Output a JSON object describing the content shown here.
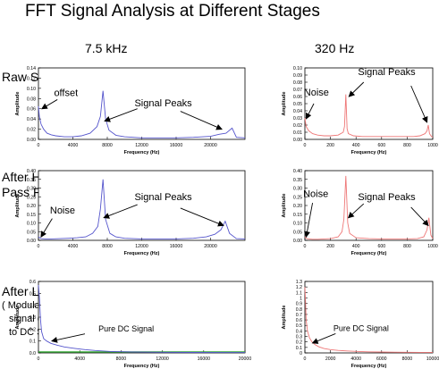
{
  "figure": {
    "title": "FFT Signal Analysis at Different Stages",
    "columns": [
      "7.5 kHz",
      "320 Hz"
    ],
    "rows": [
      [
        "Raw Signal"
      ],
      [
        "After High",
        "Pass Filter"
      ],
      [
        "After Lockin",
        "( Modulated",
        "signal converted",
        "to DC Signal)"
      ]
    ]
  },
  "chart_data": [
    {
      "type": "line",
      "xlabel": "Frequency (Hz)",
      "ylabel": "Amplitude",
      "xlim": [
        0,
        24000
      ],
      "ylim": [
        0,
        0.14
      ],
      "xticks": [
        0,
        4000,
        8000,
        12000,
        16000,
        20000
      ],
      "yticks": [
        0,
        0.02,
        0.04,
        0.06,
        0.08,
        0.1,
        0.12,
        0.14
      ],
      "ytick_labels": [
        "0.00",
        "0.02",
        "0.04",
        "0.06",
        "0.08",
        "0.10",
        "0.12",
        "0.14"
      ],
      "color": "#5555cc",
      "series": [
        {
          "x": [
            0,
            100,
            300,
            600,
            1000,
            1500,
            2000,
            3000,
            4000,
            5000,
            6000,
            6800,
            7200,
            7500,
            7800,
            8200,
            9000,
            10000,
            12000,
            14000,
            16000,
            18000,
            20000,
            21000,
            21800,
            22500,
            23000,
            24000
          ],
          "y": [
            0.065,
            0.045,
            0.03,
            0.02,
            0.012,
            0.009,
            0.007,
            0.005,
            0.005,
            0.007,
            0.012,
            0.025,
            0.045,
            0.095,
            0.04,
            0.018,
            0.008,
            0.005,
            0.003,
            0.003,
            0.003,
            0.004,
            0.006,
            0.01,
            0.012,
            0.022,
            0.004,
            0.003
          ]
        }
      ],
      "annotations": [
        {
          "text": "offset",
          "x": 3200,
          "y": 0.085
        },
        {
          "text": "Signal Peaks",
          "x": 14500,
          "y": 0.065
        }
      ],
      "arrows": [
        {
          "from": [
            2200,
            0.078
          ],
          "to": [
            400,
            0.06
          ]
        },
        {
          "from": [
            11500,
            0.06
          ],
          "to": [
            7700,
            0.036
          ]
        },
        {
          "from": [
            16500,
            0.055
          ],
          "to": [
            21300,
            0.02
          ]
        }
      ]
    },
    {
      "type": "line",
      "xlabel": "Frequency (Hz)",
      "ylabel": "Amplitude",
      "xlim": [
        0,
        1000
      ],
      "ylim": [
        0,
        0.1
      ],
      "xticks": [
        0,
        200,
        400,
        600,
        800,
        1000
      ],
      "yticks": [
        0,
        0.01,
        0.02,
        0.03,
        0.04,
        0.05,
        0.06,
        0.07,
        0.08,
        0.09,
        0.1
      ],
      "ytick_labels": [
        "0.00",
        "0.01",
        "0.02",
        "0.03",
        "0.04",
        "0.05",
        "0.06",
        "0.07",
        "0.08",
        "0.09",
        "0.10"
      ],
      "color": "#ee7777",
      "series": [
        {
          "x": [
            0,
            10,
            30,
            60,
            100,
            150,
            200,
            260,
            300,
            310,
            320,
            330,
            340,
            380,
            450,
            550,
            650,
            750,
            850,
            900,
            940,
            955,
            965,
            975,
            990,
            1000
          ],
          "y": [
            0.03,
            0.018,
            0.012,
            0.008,
            0.006,
            0.005,
            0.005,
            0.006,
            0.01,
            0.018,
            0.063,
            0.015,
            0.008,
            0.005,
            0.004,
            0.004,
            0.004,
            0.004,
            0.004,
            0.005,
            0.008,
            0.012,
            0.02,
            0.008,
            0.004,
            0.003
          ]
        }
      ],
      "annotations": [
        {
          "text": "Noise",
          "x": 90,
          "y": 0.061
        },
        {
          "text": "Signal Peaks",
          "x": 640,
          "y": 0.09
        }
      ],
      "arrows": [
        {
          "from": [
            70,
            0.05
          ],
          "to": [
            10,
            0.029
          ]
        },
        {
          "from": [
            460,
            0.08
          ],
          "to": [
            345,
            0.06
          ]
        },
        {
          "from": [
            830,
            0.075
          ],
          "to": [
            955,
            0.024
          ]
        }
      ]
    },
    {
      "type": "line",
      "xlabel": "Frequency (Hz)",
      "ylabel": "Amplitude",
      "xlim": [
        0,
        24000
      ],
      "ylim": [
        0,
        0.4
      ],
      "xticks": [
        0,
        4000,
        8000,
        12000,
        16000,
        20000
      ],
      "yticks": [
        0,
        0.05,
        0.1,
        0.15,
        0.2,
        0.25,
        0.3,
        0.35,
        0.4
      ],
      "ytick_labels": [
        "0.00",
        "0.05",
        "0.10",
        "0.15",
        "0.20",
        "0.25",
        "0.30",
        "0.35",
        "0.40"
      ],
      "color": "#5555cc",
      "series": [
        {
          "x": [
            0,
            300,
            800,
            1500,
            2500,
            3500,
            4500,
            5500,
            6300,
            6900,
            7200,
            7500,
            7800,
            8300,
            9000,
            10000,
            12000,
            14000,
            16000,
            18000,
            19500,
            20500,
            21200,
            21700,
            22200,
            23000,
            24000
          ],
          "y": [
            0.02,
            0.01,
            0.008,
            0.008,
            0.01,
            0.012,
            0.015,
            0.02,
            0.04,
            0.08,
            0.18,
            0.35,
            0.12,
            0.04,
            0.02,
            0.012,
            0.008,
            0.008,
            0.008,
            0.012,
            0.02,
            0.035,
            0.06,
            0.11,
            0.04,
            0.01,
            0.008
          ]
        }
      ],
      "annotations": [
        {
          "text": "Noise",
          "x": 2800,
          "y": 0.155
        },
        {
          "text": "Signal Peaks",
          "x": 14500,
          "y": 0.23
        }
      ],
      "arrows": [
        {
          "from": [
            1600,
            0.125
          ],
          "to": [
            300,
            0.02
          ]
        },
        {
          "from": [
            11500,
            0.205
          ],
          "to": [
            7600,
            0.13
          ]
        },
        {
          "from": [
            16500,
            0.185
          ],
          "to": [
            21500,
            0.085
          ]
        }
      ]
    },
    {
      "type": "line",
      "xlabel": "Frequency (Hz)",
      "ylabel": "Amplitude",
      "xlim": [
        0,
        1000
      ],
      "ylim": [
        0,
        0.4
      ],
      "xticks": [
        0,
        200,
        400,
        600,
        800,
        1000
      ],
      "yticks": [
        0,
        0.05,
        0.1,
        0.15,
        0.2,
        0.25,
        0.3,
        0.35,
        0.4
      ],
      "ytick_labels": [
        "0.00",
        "0.05",
        "0.10",
        "0.15",
        "0.20",
        "0.25",
        "0.30",
        "0.35",
        "0.40"
      ],
      "color": "#ee7777",
      "series": [
        {
          "x": [
            0,
            10,
            30,
            60,
            100,
            150,
            200,
            260,
            290,
            305,
            320,
            335,
            350,
            400,
            500,
            600,
            700,
            800,
            880,
            930,
            955,
            970,
            985,
            1000
          ],
          "y": [
            0.02,
            0.012,
            0.008,
            0.006,
            0.006,
            0.008,
            0.01,
            0.02,
            0.05,
            0.12,
            0.37,
            0.1,
            0.04,
            0.015,
            0.01,
            0.008,
            0.008,
            0.008,
            0.01,
            0.02,
            0.06,
            0.13,
            0.03,
            0.01
          ]
        }
      ],
      "annotations": [
        {
          "text": "Noise",
          "x": 85,
          "y": 0.25
        },
        {
          "text": "Signal Peaks",
          "x": 640,
          "y": 0.23
        }
      ],
      "arrows": [
        {
          "from": [
            60,
            0.215
          ],
          "to": [
            10,
            0.02
          ]
        },
        {
          "from": [
            460,
            0.21
          ],
          "to": [
            340,
            0.13
          ]
        },
        {
          "from": [
            830,
            0.19
          ],
          "to": [
            965,
            0.085
          ]
        }
      ]
    },
    {
      "type": "line",
      "xlabel": "Frequency (Hz)",
      "ylabel": "Amplitude",
      "xlim": [
        0,
        20000
      ],
      "ylim": [
        0,
        0.6
      ],
      "xticks": [
        0,
        4000,
        8000,
        12000,
        16000,
        20000
      ],
      "yticks": [
        0,
        0.1,
        0.2,
        0.3,
        0.4,
        0.5,
        0.6
      ],
      "ytick_labels": [
        "0.0",
        "0.1",
        "0.2",
        "0.3",
        "0.4",
        "0.5",
        "0.6"
      ],
      "color": "#5555cc",
      "series": [
        {
          "x": [
            0,
            100,
            200,
            300,
            500,
            800,
            1200,
            1800,
            2500,
            3500,
            4500,
            5500,
            7000,
            9000,
            12000,
            15000,
            18000,
            20000
          ],
          "y": [
            0.57,
            0.45,
            0.28,
            0.18,
            0.12,
            0.1,
            0.08,
            0.065,
            0.05,
            0.038,
            0.028,
            0.02,
            0.012,
            0.008,
            0.005,
            0.004,
            0.003,
            0.003
          ]
        }
      ],
      "baseline": {
        "x": [
          0,
          20000
        ],
        "y": [
          0.008,
          0.008
        ],
        "color": "#33aa33"
      },
      "annotations": [
        {
          "text": "Pure DC Signal",
          "x": 8500,
          "y": 0.18
        }
      ],
      "arrows": [
        {
          "from": [
            4500,
            0.16
          ],
          "to": [
            1300,
            0.1
          ]
        }
      ]
    },
    {
      "type": "line",
      "xlabel": "Frequency (Hz)",
      "ylabel": "Amplitude",
      "xlim": [
        0,
        10000
      ],
      "ylim": [
        0,
        1.3
      ],
      "xticks": [
        0,
        2000,
        4000,
        6000,
        8000,
        10000
      ],
      "yticks": [
        0,
        0.1,
        0.2,
        0.3,
        0.4,
        0.5,
        0.6,
        0.7,
        0.8,
        0.9,
        1.0,
        1.1,
        1.2,
        1.3
      ],
      "ytick_labels": [
        "0",
        "0.1",
        "0.2",
        "0.3",
        "0.4",
        "0.5",
        "0.6",
        "0.7",
        "0.8",
        "0.9",
        "1",
        "1.1",
        "1.2",
        "1.3"
      ],
      "color": "#ee7777",
      "series": [
        {
          "x": [
            0,
            50,
            100,
            200,
            350,
            550,
            800,
            1100,
            1500,
            2000,
            2600,
            3300,
            4000,
            5000,
            6000,
            7000,
            8000,
            9000,
            10000
          ],
          "y": [
            1.2,
            0.95,
            0.6,
            0.4,
            0.28,
            0.2,
            0.15,
            0.11,
            0.08,
            0.06,
            0.045,
            0.035,
            0.028,
            0.02,
            0.016,
            0.013,
            0.011,
            0.01,
            0.009
          ]
        }
      ],
      "annotations": [
        {
          "text": "Pure DC Signal",
          "x": 4400,
          "y": 0.4
        }
      ],
      "arrows": [
        {
          "from": [
            2400,
            0.35
          ],
          "to": [
            600,
            0.18
          ]
        }
      ]
    }
  ]
}
